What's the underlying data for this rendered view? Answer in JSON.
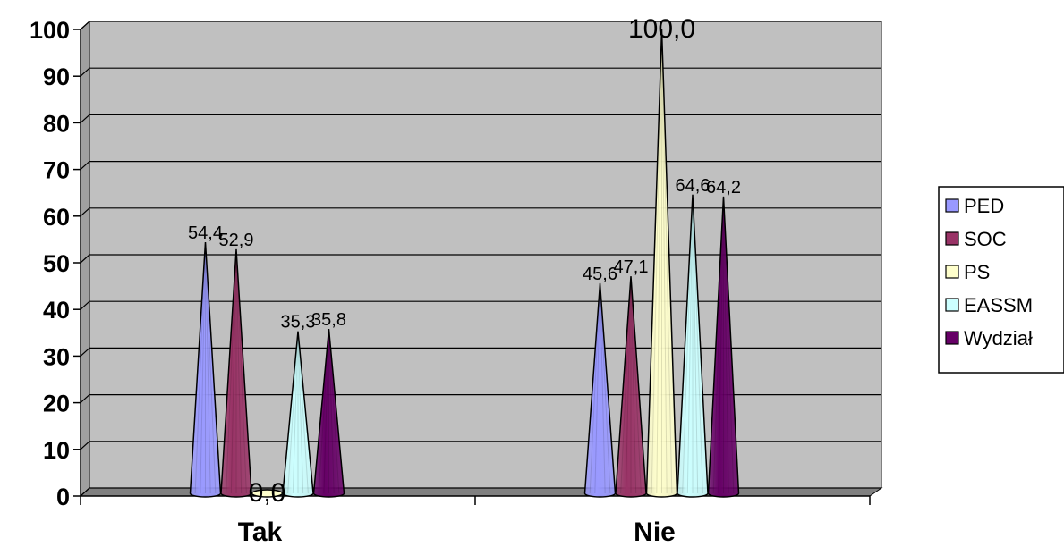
{
  "chart_data": {
    "type": "bar",
    "bar_shape": "cone",
    "three_d": true,
    "categories": [
      "Tak",
      "Nie"
    ],
    "series": [
      {
        "name": "PED",
        "values": [
          54.4,
          45.6
        ],
        "labels": [
          "54,4",
          "45,6"
        ],
        "color": "#9999ff"
      },
      {
        "name": "SOC",
        "values": [
          52.9,
          47.1
        ],
        "labels": [
          "52,9",
          "47,1"
        ],
        "color": "#993366"
      },
      {
        "name": "PS",
        "values": [
          0.0,
          100.0
        ],
        "labels": [
          "0,0",
          "100,0"
        ],
        "color": "#ffffcc"
      },
      {
        "name": "EASSM",
        "values": [
          35.3,
          64.6
        ],
        "labels": [
          "35,3",
          "64,6"
        ],
        "color": "#ccffff"
      },
      {
        "name": "Wydział",
        "values": [
          35.8,
          64.2
        ],
        "labels": [
          "35,8",
          "64,2"
        ],
        "color": "#660066"
      }
    ],
    "ylim": [
      0,
      100
    ],
    "yticks": [
      "0",
      "10",
      "20",
      "30",
      "40",
      "50",
      "60",
      "70",
      "80",
      "90",
      "100"
    ],
    "grid": true,
    "legend": "right",
    "plot_background": "#c0c0c0"
  }
}
